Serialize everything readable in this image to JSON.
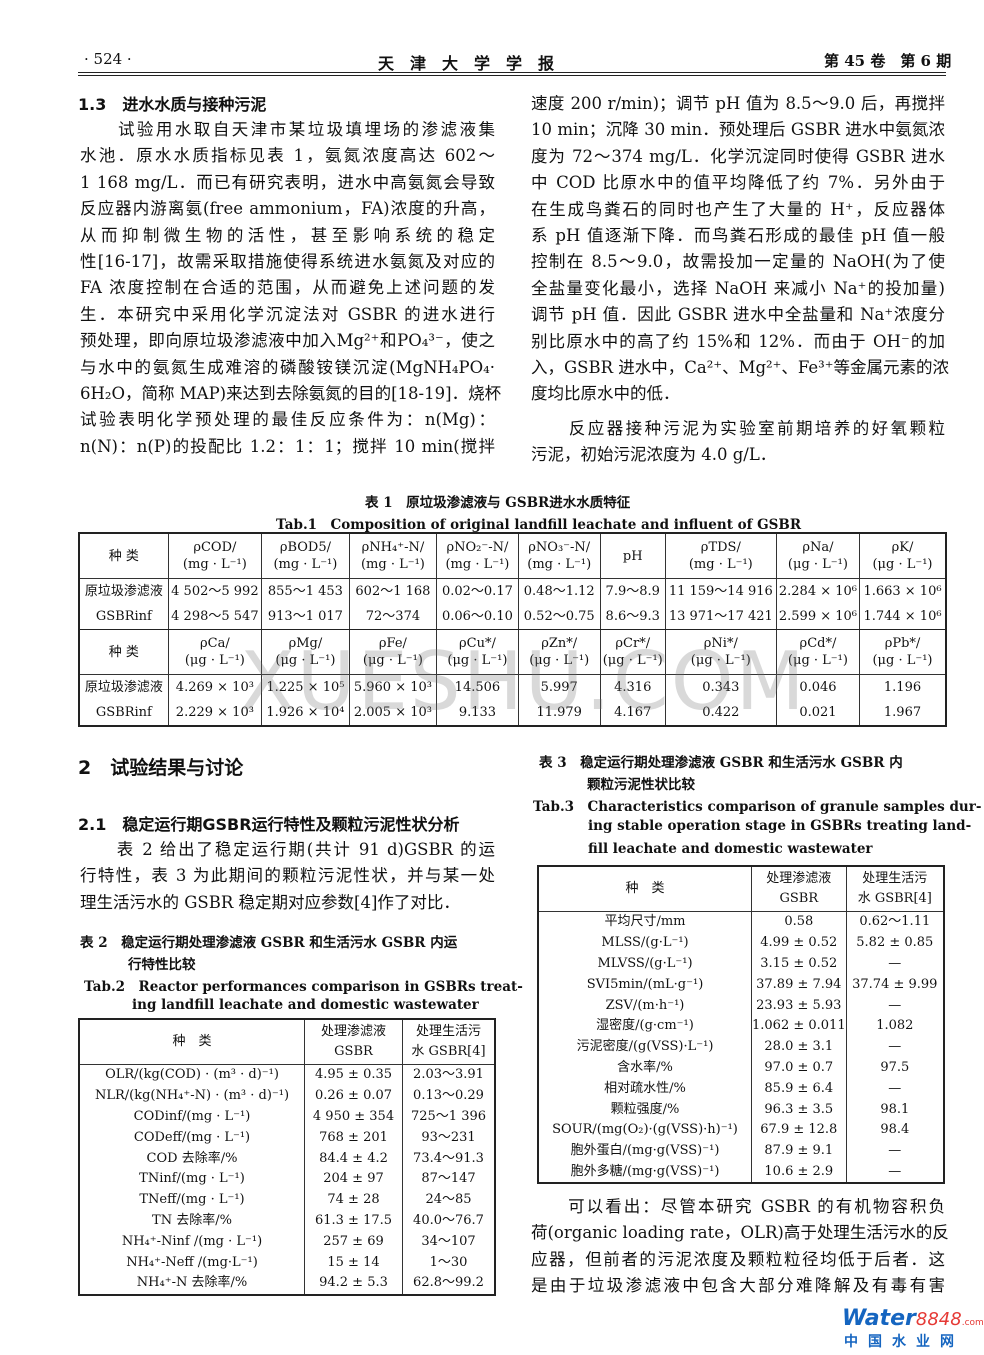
{
  "header": {
    "page": "· 524 ·",
    "journal": "天　津　大　学　学　报",
    "issue": "第 45 卷　第 6 期"
  },
  "left_col": {
    "h13": "1.3　进水水质与接种污泥",
    "p1": [
      "　　试验用水取自天津市某垃圾填埋场的渗滤液集",
      "水池．原水水质指标见表 1，氨氮浓度高达 602～",
      "1 168 mg/L．而已有研究表明，进水中高氨氮会导致",
      "反应器内游离氨(free ammonium，FA)浓度的升高，",
      "从而抑制微生物的活性，甚至影响系统的稳定",
      "性[16-17]，故需采取措施使得系统进水氨氮及对应的",
      "FA 浓度控制在合适的范围，从而避免上述问题的发",
      "生．本研究中采用化学沉淀法对 GSBR 的进水进行",
      "预处理，即向原垃圾渗滤液中加入Mg²⁺和PO₄³⁻，使之",
      "与水中的氨氮生成难溶的磷酸铵镁沉淀(MgNH₄PO₄·",
      "6H₂O，简称 MAP)来达到去除氨氮的目的[18-19]．烧杯",
      "试验表明化学预处理的最佳反应条件为：n(Mg)：",
      "n(N)：n(P)的投配比 1.2：1：1；搅拌 10 min(搅拌"
    ],
    "h2": "2　试验结果与讨论",
    "h21": "2.1　稳定运行期GSBR运行特性及颗粒污泥性状分析",
    "p2": [
      "　　表 2 给出了稳定运行期(共计 91 d)GSBR 的运",
      "行特性，表 3 为此期间的颗粒污泥性状，并与某一处",
      "理生活污水的 GSBR 稳定期对应参数[4]作了对比．"
    ]
  },
  "right_col": {
    "p1": [
      "速度 200 r/min)；调节 pH 值为 8.5～9.0 后，再搅拌",
      "10 min；沉降 30 min．预处理后 GSBR 进水中氨氮浓",
      "度为 72～374 mg/L．化学沉淀同时使得 GSBR 进水",
      "中 COD 比原水中的值平均降低了约 7%．另外由于",
      "在生成鸟粪石的同时也产生了大量的 H⁺，反应器体",
      "系 pH 值逐渐下降．而鸟粪石形成的最佳 pH 值一般",
      "控制在 8.5～9.0，故需投加一定量的 NaOH(为了使",
      "全盐量变化最小，选择 NaOH 来减小 Na⁺的投加量)",
      "调节 pH 值．因此 GSBR 进水中全盐量和 Na⁺浓度分",
      "别比原水中的高了约 15%和 12%．而由于 OH⁻的加",
      "入，GSBR 进水中，Ca²⁺、Mg²⁺、Fe³⁺等金属元素的浓",
      "度均比原水中的低．"
    ],
    "p2": [
      "　　反应器接种污泥为实验室前期培养的好氧颗粒",
      "污泥，初始污泥浓度为 4.0 g/L．"
    ],
    "p3": [
      "　　可以看出：尽管本研究 GSBR 的有机物容积负",
      "荷(organic loading rate，OLR)高于处理生活污水的反",
      "应器，但前者的污泥浓度及颗粒粒径均低于后者．这",
      "是由于垃圾渗滤液中包含大部分难降解及有毒有害"
    ]
  },
  "table1": {
    "caption_cn": "表 1　原垃圾渗滤液与 GSBR进水水质特征",
    "caption_en": "Tab.1　Composition of original landfill leachate and influent of GSBR",
    "head1": [
      "种 类",
      "ρCOD/\n(mg · L⁻¹)",
      "ρBOD5/\n(mg · L⁻¹)",
      "ρNH₄⁺-N/\n(mg · L⁻¹)",
      "ρNO₂⁻-N/\n(mg · L⁻¹)",
      "ρNO₃⁻-N/\n(mg · L⁻¹)",
      "pH",
      "ρTDS/\n(mg · L⁻¹)",
      "ρNa/\n(μg · L⁻¹)",
      "ρK/\n(μg · L⁻¹)"
    ],
    "rows1": [
      [
        "原垃圾渗滤液",
        "4 502～5 992",
        "855～1 453",
        "602～1 168",
        "0.02～0.17",
        "0.48～1.12",
        "7.9～8.9",
        "11 159～14 916",
        "2.284 × 10⁶",
        "1.663 × 10⁶"
      ],
      [
        "GSBRinf",
        "4 298～5 547",
        "913～1 017",
        "72～374",
        "0.06～0.10",
        "0.52～0.75",
        "8.6～9.3",
        "13 971～17 421",
        "2.599 × 10⁶",
        "1.744 × 10⁶"
      ]
    ],
    "head2": [
      "种 类",
      "ρCa/\n(μg · L⁻¹)",
      "ρMg/\n(μg · L⁻¹)",
      "ρFe/\n(μg · L⁻¹)",
      "ρCu*/\n(μg · L⁻¹)",
      "ρZn*/\n(μg · L⁻¹)",
      "ρCr*/\n(μg · L⁻¹)",
      "ρNi*/\n(μg · L⁻¹)",
      "ρCd*/\n(μg · L⁻¹)",
      "ρPb*/\n(μg · L⁻¹)"
    ],
    "rows2": [
      [
        "原垃圾渗滤液",
        "4.269 × 10³",
        "1.225 × 10⁵",
        "5.960 × 10³",
        "14.506",
        "5.997",
        "4.316",
        "0.343",
        "0.046",
        "1.196"
      ],
      [
        "GSBRinf",
        "2.229 × 10³",
        "1.926 × 10⁴",
        "2.005 × 10³",
        "9.133",
        "11.979",
        "4.167",
        "0.422",
        "0.021",
        "1.967"
      ]
    ]
  },
  "table2": {
    "caption_cn": [
      "表 2　稳定运行期处理渗滤液 GSBR 和生活污水 GSBR 内运",
      "行特性比较"
    ],
    "caption_en": [
      "Tab.2　Reactor performances comparison in GSBRs treat-",
      "ing landfill leachate and domestic wastewater"
    ],
    "head": [
      "种　类",
      "处理渗滤液\nGSBR",
      "处理生活污\n水 GSBR[4]"
    ],
    "rows": [
      [
        "OLR/(kg(COD) · (m³ · d)⁻¹)",
        "4.95 ± 0.35",
        "2.03～3.91"
      ],
      [
        "NLR/(kg(NH₄⁺-N) · (m³ · d)⁻¹)",
        "0.26 ± 0.07",
        "0.13～0.29"
      ],
      [
        "CODinf/(mg · L⁻¹)",
        "4 950 ± 354",
        "725～1 396"
      ],
      [
        "CODeff/(mg · L⁻¹)",
        "768 ± 201",
        "93～231"
      ],
      [
        "COD 去除率/%",
        "84.4 ± 4.2",
        "73.4～91.3"
      ],
      [
        "TNinf/(mg · L⁻¹)",
        "204 ± 97",
        "87～147"
      ],
      [
        "TNeff/(mg · L⁻¹)",
        "74 ± 28",
        "24～85"
      ],
      [
        "TN 去除率/%",
        "61.3 ± 17.5",
        "40.0～76.7"
      ],
      [
        "NH₄⁺-Ninf /(mg · L⁻¹)",
        "257 ± 69",
        "34～107"
      ],
      [
        "NH₄⁺-Neff /(mg·L⁻¹)",
        "15 ± 14",
        "1～30"
      ],
      [
        "NH₄⁺-N 去除率/%",
        "94.2 ± 5.3",
        "62.8～99.2"
      ]
    ]
  },
  "table3": {
    "caption_cn": [
      "表 3　稳定运行期处理渗滤液 GSBR 和生活污水 GSBR 内",
      "颗粒污泥性状比较"
    ],
    "caption_en": [
      "Tab.3　Characteristics comparison of granule samples dur-",
      "ing stable operation stage in GSBRs treating land-",
      "fill leachate and domestic wastewater"
    ],
    "head": [
      "种　类",
      "处理渗滤液\nGSBR",
      "处理生活污\n水 GSBR[4]"
    ],
    "rows": [
      [
        "平均尺寸/mm",
        "0.58",
        "0.62～1.11"
      ],
      [
        "MLSS/(g·L⁻¹)",
        "4.99 ± 0.52",
        "5.82 ± 0.85"
      ],
      [
        "MLVSS/(g·L⁻¹)",
        "3.15 ± 0.52",
        "—"
      ],
      [
        "SVI5min/(mL·g⁻¹)",
        "37.89 ± 7.94",
        "37.74 ± 9.99"
      ],
      [
        "ZSV/(m·h⁻¹)",
        "23.93 ± 5.93",
        "—"
      ],
      [
        "湿密度/(g·cm⁻¹)",
        "1.062 ± 0.011",
        "1.082"
      ],
      [
        "污泥密度/(g(VSS)·L⁻¹)",
        "28.0 ± 3.1",
        "—"
      ],
      [
        "含水率/%",
        "97.0 ± 0.7",
        "97.5"
      ],
      [
        "相对疏水性/%",
        "85.9 ± 6.4",
        "—"
      ],
      [
        "颗粒强度/%",
        "96.3 ± 3.5",
        "98.1"
      ],
      [
        "SOUR/(mg(O₂)·(g(VSS)·h)⁻¹)",
        "67.9 ± 12.8",
        "98.4"
      ],
      [
        "胞外蛋白/(mg·g(VSS)⁻¹)",
        "87.9 ± 9.1",
        "—"
      ],
      [
        "胞外多糖/(mg·g(VSS)⁻¹)",
        "10.6 ± 2.9",
        "—"
      ]
    ]
  },
  "watermark": "XUESHU.COM",
  "logo": {
    "water": "Water",
    "num": "8848",
    "com": ".com",
    "cn": "中国水业网"
  }
}
